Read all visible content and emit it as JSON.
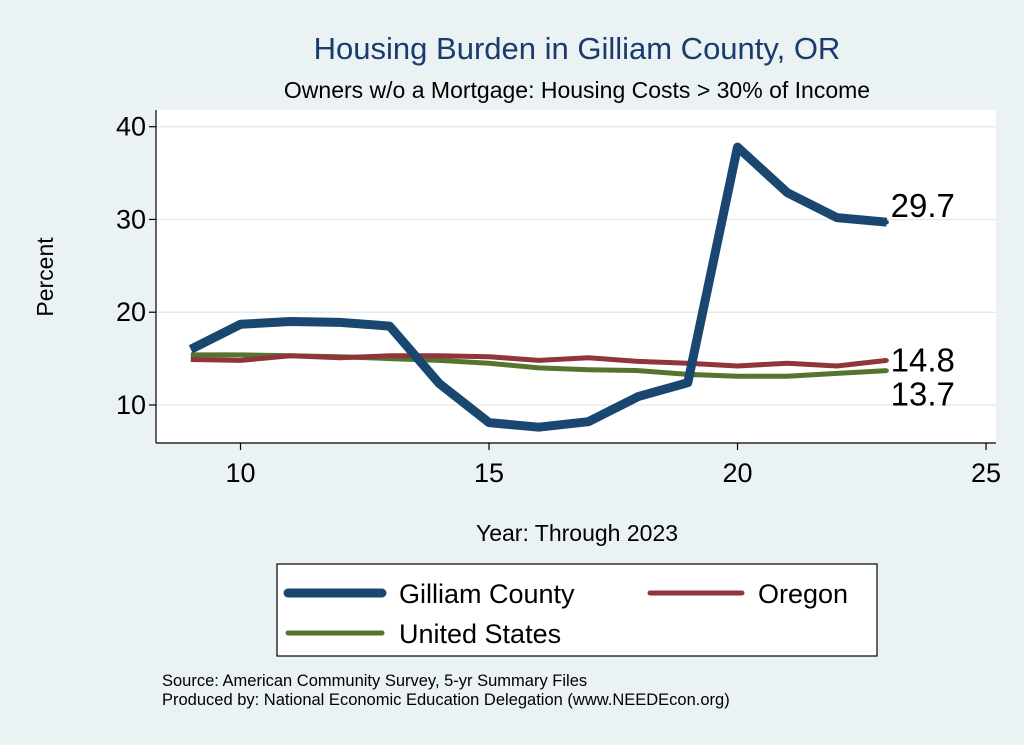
{
  "chart_data": {
    "type": "line",
    "title": "Housing Burden in Gilliam County, OR",
    "subtitle": "Owners w/o a Mortgage: Housing Costs > 30% of Income",
    "xlabel": "Year: Through 2023",
    "ylabel": "Percent",
    "xlim": [
      8.3,
      25.2
    ],
    "ylim": [
      5.9,
      41.8
    ],
    "xticks": [
      10,
      15,
      20,
      25
    ],
    "yticks": [
      10,
      20,
      30,
      40
    ],
    "grid": true,
    "legend_position": "bottom",
    "x": [
      9,
      10,
      11,
      12,
      13,
      14,
      15,
      16,
      17,
      18,
      19,
      20,
      21,
      22,
      23
    ],
    "series": [
      {
        "name": "Gilliam County",
        "color": "#1a476f",
        "values": [
          16.0,
          18.7,
          19.0,
          18.9,
          18.5,
          12.3,
          8.1,
          7.6,
          8.2,
          10.9,
          12.4,
          37.8,
          32.9,
          30.2,
          29.7
        ],
        "end_label": "29.7"
      },
      {
        "name": "Oregon",
        "color": "#90353b",
        "values": [
          14.9,
          14.8,
          15.3,
          15.1,
          15.3,
          15.3,
          15.2,
          14.8,
          15.1,
          14.7,
          14.5,
          14.2,
          14.5,
          14.2,
          14.8
        ],
        "end_label": "14.8"
      },
      {
        "name": "United States",
        "color": "#55752f",
        "values": [
          15.4,
          15.4,
          15.3,
          15.2,
          15.0,
          14.8,
          14.5,
          14.0,
          13.8,
          13.7,
          13.3,
          13.1,
          13.1,
          13.4,
          13.7
        ],
        "end_label": "13.7"
      }
    ]
  },
  "footer": {
    "source": "Source: American Community Survey, 5-yr Summary Files",
    "produced": "Produced by: National Economic Education Delegation (www.NEEDEcon.org)"
  }
}
